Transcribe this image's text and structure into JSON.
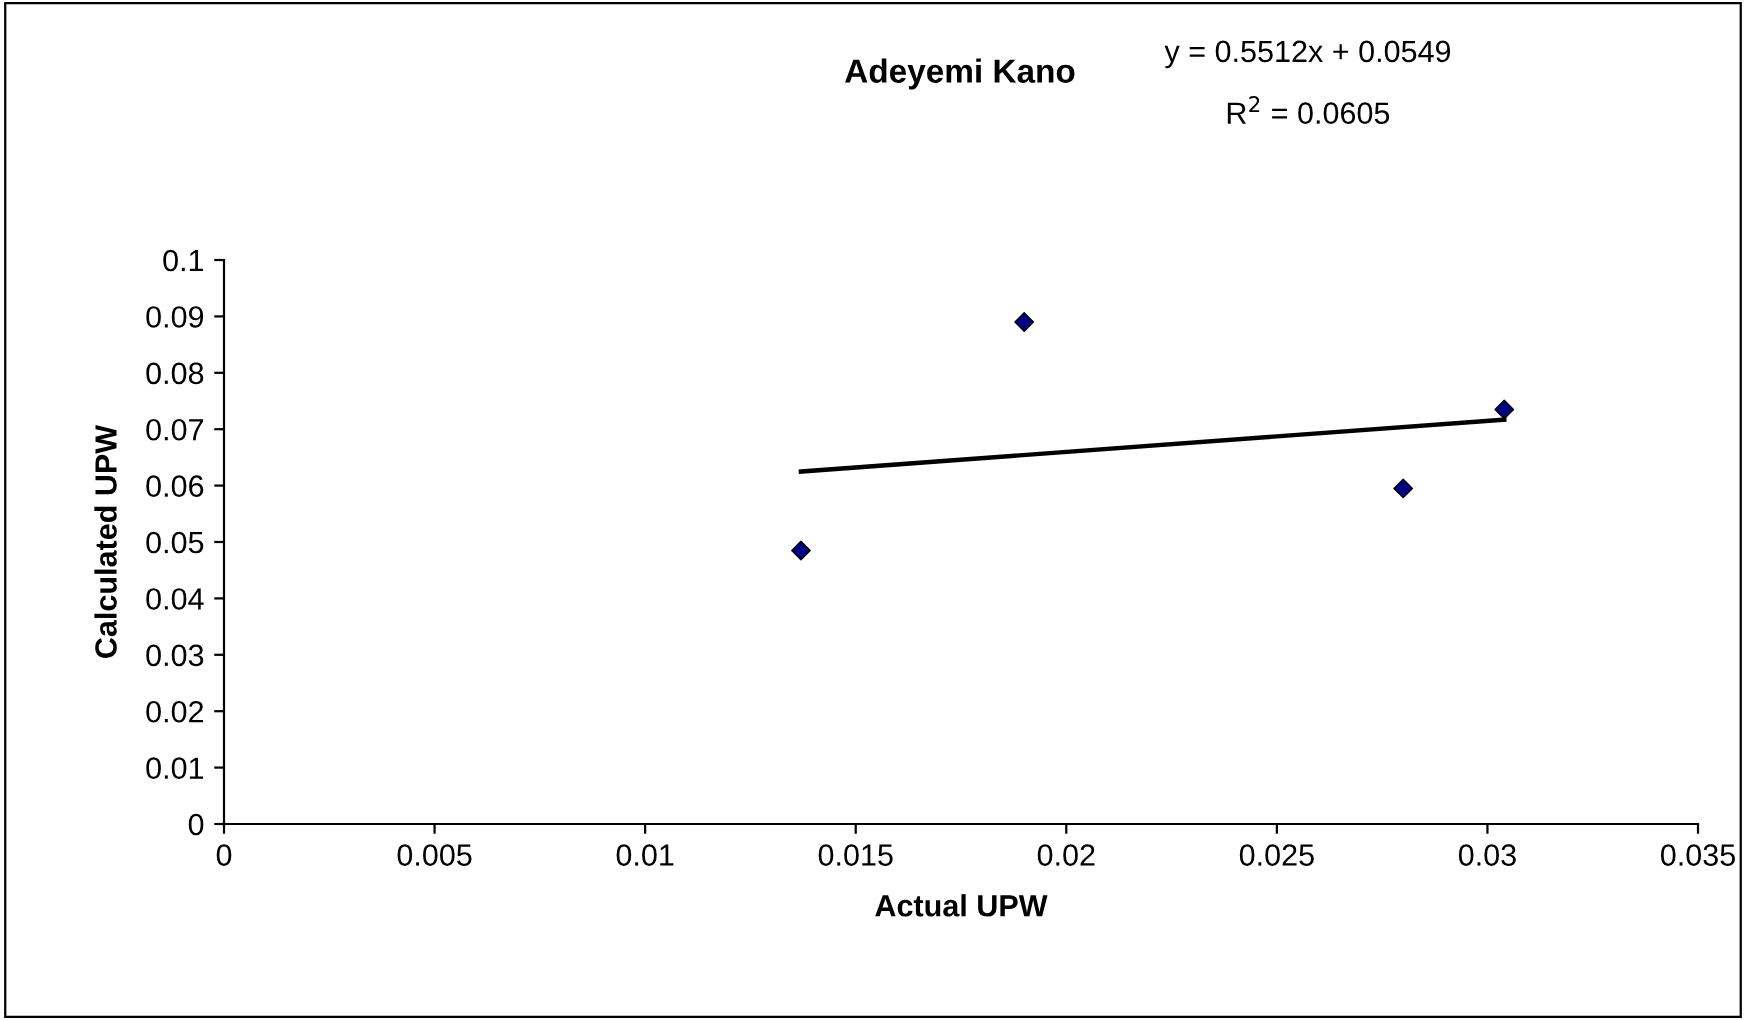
{
  "chart_data": {
    "type": "scatter",
    "title": "Adeyemi Kano",
    "xlabel": "Actual UPW",
    "ylabel": "Calculated UPW",
    "annotations": [
      "y = 0.5512x + 0.0549",
      "R$^{2}$ = 0.0605"
    ],
    "series": [
      {
        "color": "#000080",
        "marker": "diamond",
        "x": [
          0.0137,
          0.019,
          0.028,
          0.0304
        ],
        "values": [
          0.0485,
          0.089,
          0.0595,
          0.0735
        ]
      },
      {
        "type": "line",
        "color": "#000000",
        "marker": "none",
        "line_style": "solid",
        "x": [
          0.0137,
          0.0304
        ],
        "values": [
          0.0625,
          0.0717
        ]
      }
    ],
    "xlim": [
      0,
      0.035
    ],
    "xticks": [
      0,
      0.005,
      0.01,
      0.015,
      0.02,
      0.025,
      0.03,
      0.035
    ],
    "ylim": [
      0,
      0.1
    ],
    "yticks": [
      0,
      0.01,
      0.02,
      0.03,
      0.04,
      0.05,
      0.06,
      0.07,
      0.08,
      0.09,
      0.1
    ],
    "grid": false,
    "legend": false
  }
}
